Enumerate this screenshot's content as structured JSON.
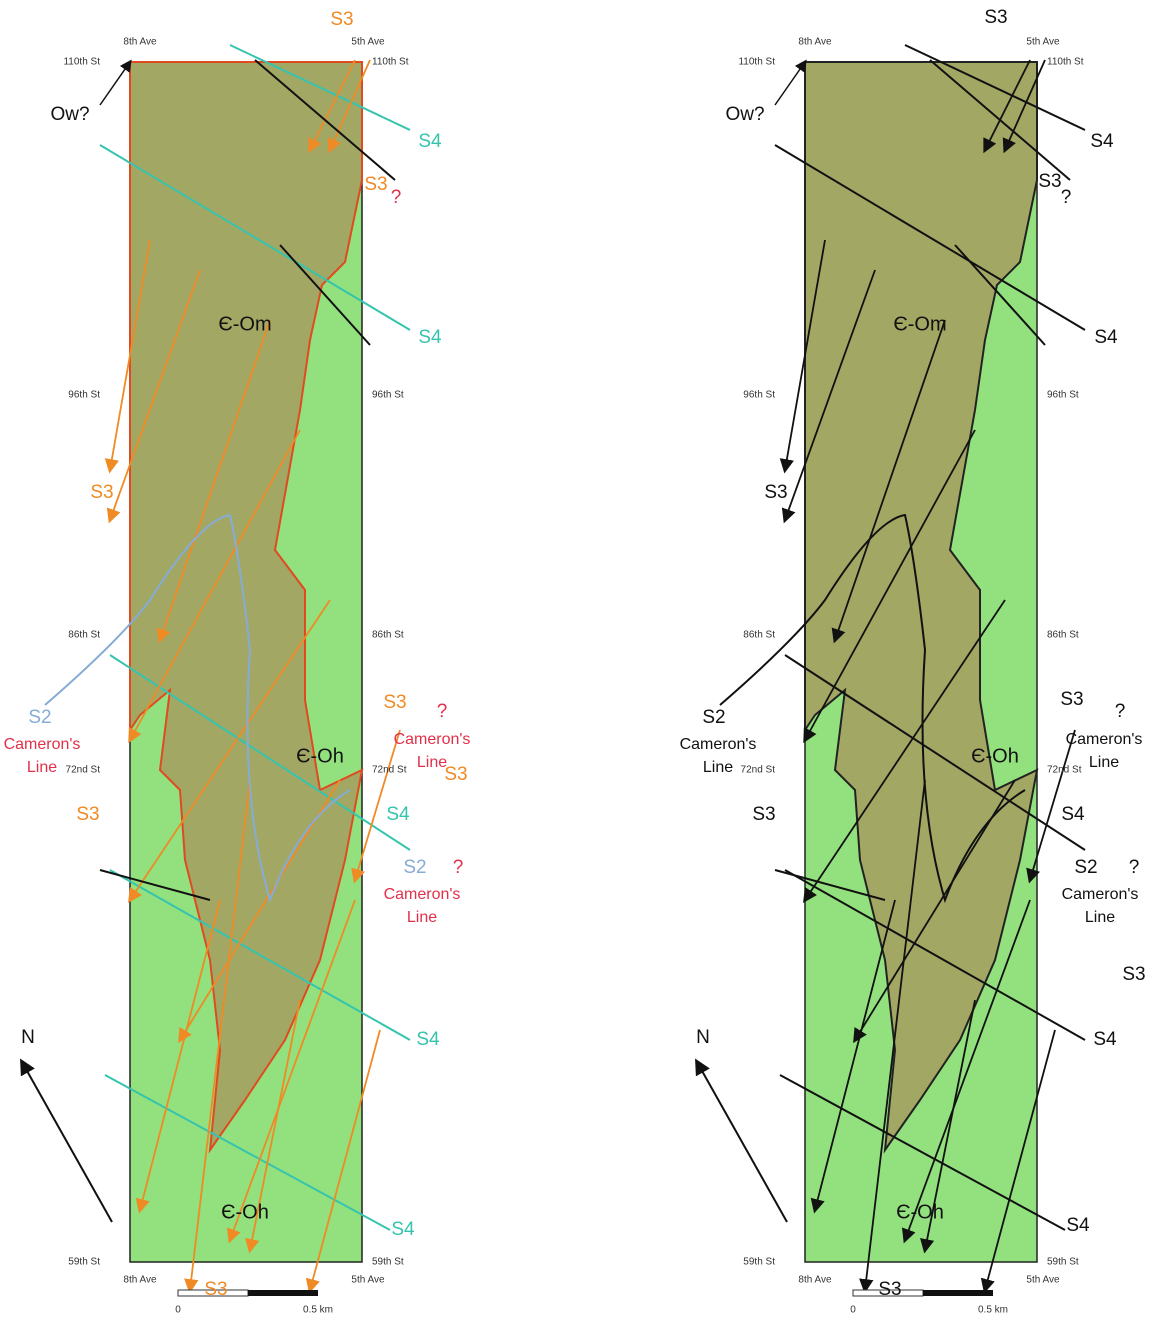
{
  "panels": [
    {
      "top_avenues": [
        "8th Ave",
        "5th Ave"
      ],
      "bottom_avenues": [
        "8th Ave",
        "5th Ave"
      ],
      "left_streets": [
        "110th St",
        "96th St",
        "86th St",
        "72nd St",
        "59th St"
      ],
      "right_streets": [
        "110th St",
        "96th St",
        "86th St",
        "72nd St",
        "59th St"
      ],
      "ow": "Ow?",
      "units": [
        "Є-Om",
        "Є-Oh",
        "Є-Oh"
      ],
      "north": "N",
      "s3": [
        "S3",
        "S3",
        "S3",
        "S3",
        "S3",
        "S3",
        "S3"
      ],
      "s4": [
        "S4",
        "S4",
        "S4",
        "S4",
        "S4"
      ],
      "s2": [
        "S2",
        "S2"
      ],
      "camerons_line": [
        [
          "Cameron's",
          "Line"
        ],
        [
          "Cameron's",
          "Line"
        ],
        [
          "Cameron's",
          "Line"
        ]
      ],
      "question_marks": [
        "?",
        "?",
        "?"
      ],
      "scale": [
        "0",
        "0.5 km"
      ]
    },
    {
      "top_avenues": [
        "8th Ave",
        "5th Ave"
      ],
      "bottom_avenues": [
        "8th Ave",
        "5th Ave"
      ],
      "left_streets": [
        "110th St",
        "96th St",
        "86th St",
        "72nd St",
        "59th St"
      ],
      "right_streets": [
        "110th St",
        "96th St",
        "86th St",
        "72nd St",
        "59th St"
      ],
      "ow": "Ow?",
      "units": [
        "Є-Om",
        "Є-Oh",
        "Є-Oh"
      ],
      "north": "N",
      "s3": [
        "S3",
        "S3",
        "S3",
        "S3",
        "S3",
        "S3",
        "S3"
      ],
      "s4": [
        "S4",
        "S4",
        "S4",
        "S4",
        "S4"
      ],
      "s2": [
        "S2",
        "S2"
      ],
      "camerons_line": [
        [
          "Cameron's",
          "Line"
        ],
        [
          "Cameron's",
          "Line"
        ],
        [
          "Cameron's",
          "Line"
        ]
      ],
      "question_marks": [
        "?",
        "?",
        "?"
      ],
      "scale": [
        "0",
        "0.5 km"
      ]
    }
  ]
}
